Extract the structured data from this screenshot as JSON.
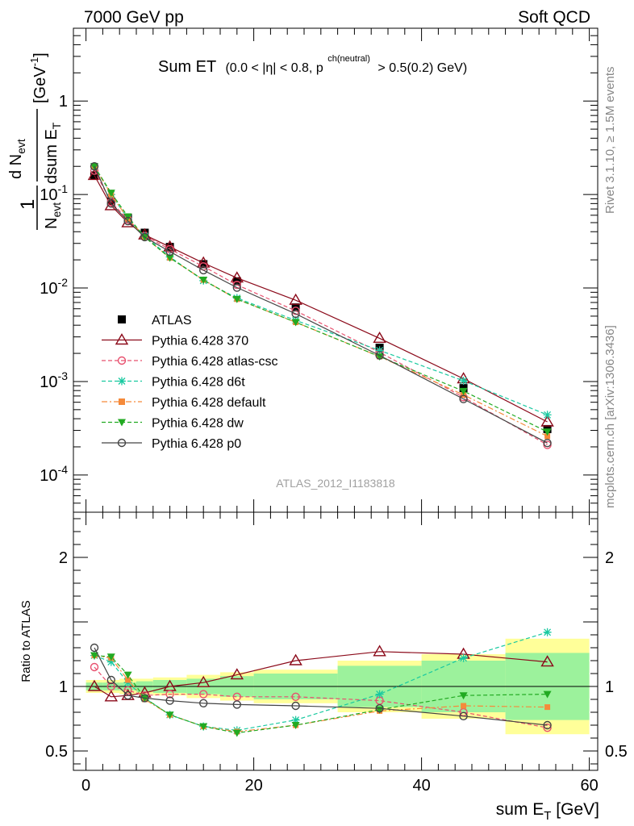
{
  "header": {
    "energy_label": "7000 GeV pp",
    "process_label": "Soft QCD"
  },
  "side_text": {
    "rivet": "Rivet 3.1.10, ≥ 1.5M events",
    "source": "mcplots.cern.ch [arXiv:1306.3436]"
  },
  "watermark": "ATLAS_2012_I1183818",
  "chart_data": [
    {
      "type": "line",
      "panel": "main",
      "title": "Sum ET",
      "subtitle_pre": "(0.0 < |η| < 0.8, p",
      "subtitle_sup": "ch(neutral)",
      "subtitle_post": "> 0.5(0.2) GeV)",
      "ylabel": "1/N_evt dN_evt/dsum E_T [GeV^-1]",
      "yscale": "log",
      "ylim": [
        4e-05,
        6
      ],
      "xlim": [
        -1.5,
        61
      ],
      "ytick_labels": [
        "10^-4",
        "10^-3",
        "10^-2",
        "10^-1",
        "1"
      ],
      "grid": false,
      "legend_position": "center-left",
      "x": [
        1,
        3,
        5,
        7,
        10,
        14,
        18,
        25,
        35,
        45,
        55
      ],
      "series": [
        {
          "name": "ATLAS",
          "color": "#000000",
          "marker": "square",
          "line": "none",
          "values": [
            0.16,
            0.084,
            0.056,
            0.039,
            0.0275,
            0.018,
            0.0118,
            0.0062,
            0.0023,
            0.00085,
            0.00031
          ]
        },
        {
          "name": "Pythia 6.428 370",
          "color": "#8b0a1a",
          "marker": "triangle-open",
          "line": "solid",
          "values": [
            0.16,
            0.076,
            0.05,
            0.037,
            0.0275,
            0.0185,
            0.0128,
            0.0074,
            0.0029,
            0.00107,
            0.00037
          ]
        },
        {
          "name": "Pythia 6.428 atlas-csc",
          "color": "#e8506e",
          "marker": "circle-open",
          "line": "dashed",
          "values": [
            0.18,
            0.083,
            0.054,
            0.036,
            0.026,
            0.017,
            0.0108,
            0.0057,
            0.00205,
            0.00068,
            0.00021
          ]
        },
        {
          "name": "Pythia 6.428 d6t",
          "color": "#19c9a0",
          "marker": "star",
          "line": "dashed",
          "values": [
            0.2,
            0.1,
            0.055,
            0.036,
            0.0215,
            0.012,
            0.0078,
            0.0045,
            0.00215,
            0.00102,
            0.00044
          ]
        },
        {
          "name": "Pythia 6.428 default",
          "color": "#f58a3a",
          "marker": "square",
          "line": "dashdot",
          "values": [
            0.2,
            0.1,
            0.055,
            0.035,
            0.021,
            0.0122,
            0.0076,
            0.0043,
            0.00185,
            0.00072,
            0.00026
          ]
        },
        {
          "name": "Pythia 6.428 dw",
          "color": "#22aa22",
          "marker": "triangle-down",
          "line": "dashed",
          "values": [
            0.2,
            0.104,
            0.058,
            0.035,
            0.021,
            0.0122,
            0.0076,
            0.0043,
            0.00185,
            0.00079,
            0.00029
          ]
        },
        {
          "name": "Pythia 6.428 p0",
          "color": "#444444",
          "marker": "circle-open",
          "line": "solid",
          "values": [
            0.2,
            0.08,
            0.052,
            0.035,
            0.0245,
            0.0155,
            0.0101,
            0.0053,
            0.0019,
            0.00065,
            0.00022
          ]
        }
      ]
    },
    {
      "type": "line",
      "panel": "ratio",
      "ylabel": "Ratio to ATLAS",
      "xlabel": "sum E_T [GeV]",
      "ylim": [
        0.35,
        2.35
      ],
      "xlim": [
        -1.5,
        61
      ],
      "yticks": [
        0.5,
        1,
        2
      ],
      "ytick_labels": [
        "0.5",
        "1",
        "2"
      ],
      "xticks": [
        0,
        20,
        40,
        60
      ],
      "xtick_labels": [
        "0",
        "20",
        "40",
        "60"
      ],
      "reference_line": 1,
      "x": [
        1,
        3,
        5,
        7,
        10,
        14,
        18,
        25,
        35,
        45,
        55
      ],
      "bands": {
        "edges": [
          0,
          2,
          4,
          6,
          8,
          12,
          16,
          20,
          30,
          40,
          50,
          60
        ],
        "stat": [
          0.03,
          0.03,
          0.03,
          0.04,
          0.05,
          0.06,
          0.08,
          0.1,
          0.16,
          0.2,
          0.26
        ],
        "total": [
          0.05,
          0.05,
          0.06,
          0.06,
          0.07,
          0.09,
          0.11,
          0.13,
          0.2,
          0.25,
          0.37
        ],
        "stat_color": "#9cf29c",
        "total_color": "#ffff99"
      },
      "series": [
        {
          "name": "Pythia 6.428 370",
          "color": "#8b0a1a",
          "marker": "triangle-open",
          "line": "solid",
          "values": [
            1.0,
            0.92,
            0.93,
            0.95,
            1.0,
            1.03,
            1.09,
            1.2,
            1.27,
            1.25,
            1.19
          ]
        },
        {
          "name": "Pythia 6.428 atlas-csc",
          "color": "#e8506e",
          "marker": "circle-open",
          "line": "dashed",
          "values": [
            1.15,
            1.0,
            0.97,
            0.93,
            0.94,
            0.94,
            0.92,
            0.92,
            0.89,
            0.8,
            0.68
          ]
        },
        {
          "name": "Pythia 6.428 d6t",
          "color": "#19c9a0",
          "marker": "star",
          "line": "dashed",
          "values": [
            1.24,
            1.19,
            1.03,
            0.91,
            0.78,
            0.69,
            0.66,
            0.74,
            0.94,
            1.22,
            1.42
          ]
        },
        {
          "name": "Pythia 6.428 default",
          "color": "#f58a3a",
          "marker": "square",
          "line": "dashdot",
          "values": [
            1.24,
            1.22,
            1.05,
            0.9,
            0.78,
            0.69,
            0.65,
            0.7,
            0.81,
            0.85,
            0.84
          ]
        },
        {
          "name": "Pythia 6.428 dw",
          "color": "#22aa22",
          "marker": "triangle-down",
          "line": "dashed",
          "values": [
            1.24,
            1.23,
            1.09,
            0.91,
            0.78,
            0.69,
            0.64,
            0.7,
            0.82,
            0.93,
            0.94
          ]
        },
        {
          "name": "Pythia 6.428 p0",
          "color": "#444444",
          "marker": "circle-open",
          "line": "solid",
          "values": [
            1.3,
            1.05,
            0.93,
            0.91,
            0.89,
            0.87,
            0.86,
            0.85,
            0.83,
            0.77,
            0.7
          ]
        }
      ]
    }
  ]
}
